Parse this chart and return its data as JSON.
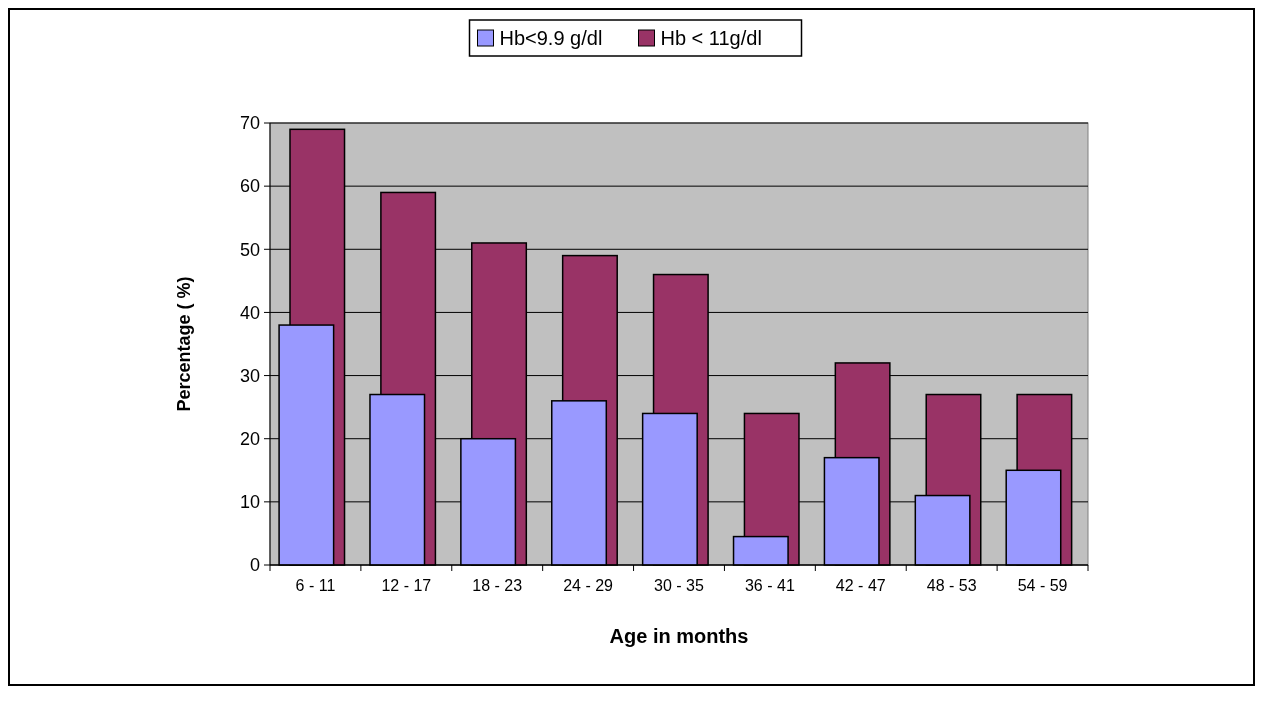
{
  "chart_data": {
    "type": "bar",
    "xlabel": "Age in months",
    "ylabel": "Percentage ( %)",
    "categories": [
      "6 - 11",
      "12 - 17",
      "18 - 23",
      "24 - 29",
      "30 - 35",
      "36 - 41",
      "42 - 47",
      "48 - 53",
      "54 - 59"
    ],
    "series": [
      {
        "name": "Hb<9.9 g/dl",
        "color": "#9999ff",
        "values": [
          38,
          27,
          20,
          26,
          24,
          4.5,
          17,
          11,
          15
        ]
      },
      {
        "name": "Hb < 11g/dl",
        "color": "#993366",
        "values": [
          69,
          59,
          51,
          49,
          46,
          24,
          32,
          27,
          27
        ]
      }
    ],
    "ylim": [
      0,
      70
    ],
    "yticks": [
      0,
      10,
      20,
      30,
      40,
      50,
      60,
      70
    ],
    "grid": "y",
    "legend": "top"
  }
}
